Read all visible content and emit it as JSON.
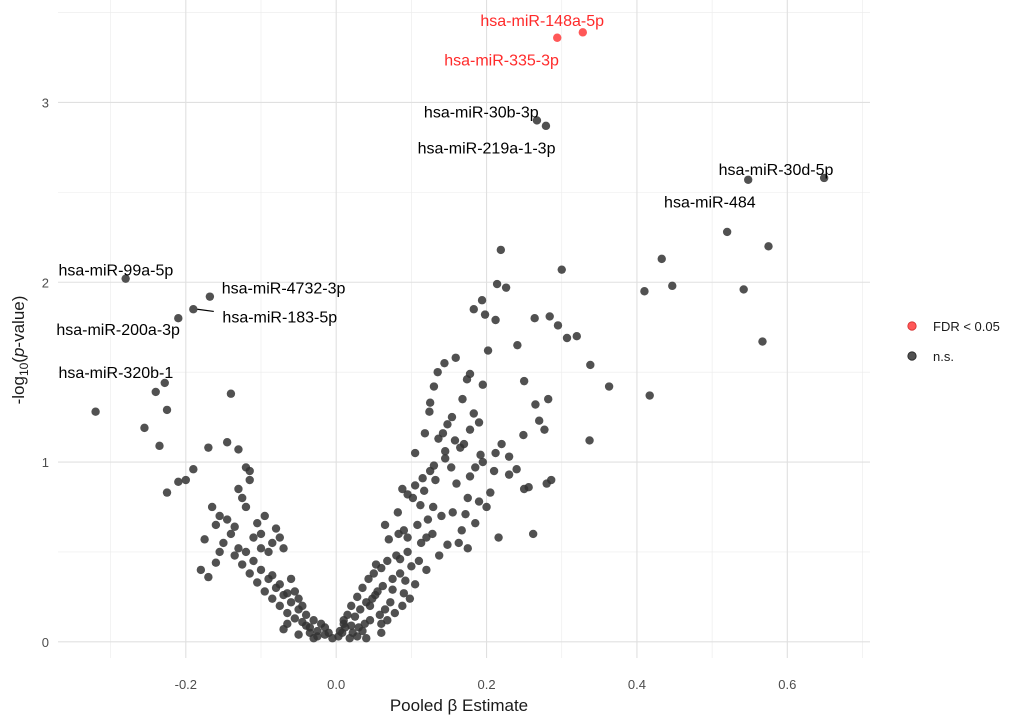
{
  "chart_data": {
    "type": "scatter",
    "xlabel": "Pooled β Estimate",
    "ylabel_pre": "-log",
    "ylabel_sub": "10",
    "ylabel_open": "(",
    "ylabel_italic": "p",
    "ylabel_post": "-value)",
    "xlim": [
      -0.37,
      0.71
    ],
    "ylim": [
      -0.09,
      3.57
    ],
    "x_ticks": [
      -0.2,
      0.0,
      0.2,
      0.4,
      0.6
    ],
    "x_tick_labels": [
      "-0.2",
      "0.0",
      "0.2",
      "0.4",
      "0.6"
    ],
    "y_ticks": [
      0,
      1,
      2,
      3
    ],
    "y_tick_labels": [
      "0",
      "1",
      "2",
      "3"
    ],
    "grid": true,
    "legend_position": "right",
    "legend": [
      {
        "label": "FDR < 0.05",
        "color": "#ff3b3b"
      },
      {
        "label": "n.s.",
        "color": "#333333"
      }
    ],
    "series": [
      {
        "name": "FDR < 0.05",
        "color": "#ff3b3b",
        "points": [
          [
            0.294,
            3.36
          ],
          [
            0.328,
            3.39
          ]
        ]
      },
      {
        "name": "n.s.",
        "color": "#333333",
        "points": [
          [
            0.267,
            2.9
          ],
          [
            0.279,
            2.87
          ],
          [
            0.649,
            2.58
          ],
          [
            0.548,
            2.57
          ],
          [
            0.52,
            2.28
          ],
          [
            0.575,
            2.2
          ],
          [
            0.219,
            2.18
          ],
          [
            0.433,
            2.13
          ],
          [
            0.3,
            2.07
          ],
          [
            0.447,
            1.98
          ],
          [
            0.41,
            1.95
          ],
          [
            0.542,
            1.96
          ],
          [
            0.214,
            1.99
          ],
          [
            0.226,
            1.97
          ],
          [
            0.194,
            1.9
          ],
          [
            0.567,
            1.67
          ],
          [
            0.183,
            1.85
          ],
          [
            0.198,
            1.82
          ],
          [
            0.212,
            1.79
          ],
          [
            0.284,
            1.81
          ],
          [
            0.264,
            1.8
          ],
          [
            0.295,
            1.76
          ],
          [
            0.307,
            1.69
          ],
          [
            0.32,
            1.7
          ],
          [
            0.202,
            1.62
          ],
          [
            0.159,
            1.58
          ],
          [
            0.144,
            1.55
          ],
          [
            0.135,
            1.5
          ],
          [
            0.241,
            1.65
          ],
          [
            0.178,
            1.49
          ],
          [
            0.174,
            1.46
          ],
          [
            0.195,
            1.43
          ],
          [
            0.338,
            1.54
          ],
          [
            0.363,
            1.42
          ],
          [
            0.417,
            1.37
          ],
          [
            0.25,
            1.45
          ],
          [
            0.168,
            1.35
          ],
          [
            0.13,
            1.42
          ],
          [
            0.125,
            1.33
          ],
          [
            0.265,
            1.32
          ],
          [
            0.154,
            1.25
          ],
          [
            0.183,
            1.27
          ],
          [
            0.282,
            1.35
          ],
          [
            0.124,
            1.28
          ],
          [
            0.27,
            1.23
          ],
          [
            0.249,
            1.15
          ],
          [
            0.277,
            1.18
          ],
          [
            0.337,
            1.12
          ],
          [
            0.148,
            1.21
          ],
          [
            0.118,
            1.16
          ],
          [
            0.136,
            1.13
          ],
          [
            0.165,
            1.08
          ],
          [
            0.17,
            1.1
          ],
          [
            0.105,
            1.05
          ],
          [
            0.195,
            1.0
          ],
          [
            0.185,
            0.97
          ],
          [
            0.145,
            1.02
          ],
          [
            0.13,
            0.98
          ],
          [
            0.125,
            0.95
          ],
          [
            0.21,
            0.95
          ],
          [
            0.23,
            0.93
          ],
          [
            0.25,
            0.85
          ],
          [
            0.28,
            0.88
          ],
          [
            0.256,
            0.86
          ],
          [
            0.286,
            0.9
          ],
          [
            0.115,
            0.91
          ],
          [
            0.105,
            0.87
          ],
          [
            0.095,
            0.82
          ],
          [
            0.175,
            0.8
          ],
          [
            0.19,
            0.78
          ],
          [
            0.2,
            0.75
          ],
          [
            0.155,
            0.72
          ],
          [
            0.14,
            0.7
          ],
          [
            0.122,
            0.68
          ],
          [
            0.108,
            0.65
          ],
          [
            0.09,
            0.62
          ],
          [
            0.083,
            0.6
          ],
          [
            0.07,
            0.57
          ],
          [
            0.128,
            0.6
          ],
          [
            0.148,
            0.54
          ],
          [
            0.163,
            0.55
          ],
          [
            0.175,
            0.52
          ],
          [
            0.216,
            0.58
          ],
          [
            0.262,
            0.6
          ],
          [
            0.095,
            0.5
          ],
          [
            0.08,
            0.48
          ],
          [
            0.068,
            0.45
          ],
          [
            0.06,
            0.41
          ],
          [
            0.05,
            0.38
          ],
          [
            0.043,
            0.35
          ],
          [
            0.035,
            0.3
          ],
          [
            0.028,
            0.25
          ],
          [
            0.02,
            0.2
          ],
          [
            0.015,
            0.15
          ],
          [
            0.01,
            0.1
          ],
          [
            0.005,
            0.06
          ],
          [
            0.003,
            0.03
          ],
          [
            0.008,
            0.05
          ],
          [
            0.012,
            0.08
          ],
          [
            0.025,
            0.14
          ],
          [
            0.032,
            0.18
          ],
          [
            0.04,
            0.22
          ],
          [
            0.048,
            0.24
          ],
          [
            0.055,
            0.28
          ],
          [
            0.062,
            0.31
          ],
          [
            0.075,
            0.35
          ],
          [
            0.085,
            0.38
          ],
          [
            0.1,
            0.42
          ],
          [
            0.11,
            0.45
          ],
          [
            0.12,
            0.4
          ],
          [
            0.105,
            0.32
          ],
          [
            0.09,
            0.27
          ],
          [
            0.072,
            0.22
          ],
          [
            0.065,
            0.18
          ],
          [
            0.058,
            0.15
          ],
          [
            0.045,
            0.12
          ],
          [
            0.038,
            0.1
          ],
          [
            0.03,
            0.08
          ],
          [
            0.022,
            0.05
          ],
          [
            0.028,
            0.03
          ],
          [
            0.018,
            0.02
          ],
          [
            -0.005,
            0.02
          ],
          [
            -0.01,
            0.05
          ],
          [
            -0.015,
            0.08
          ],
          [
            -0.02,
            0.1
          ],
          [
            -0.025,
            0.06
          ],
          [
            -0.03,
            0.12
          ],
          [
            -0.035,
            0.08
          ],
          [
            -0.04,
            0.15
          ],
          [
            -0.045,
            0.11
          ],
          [
            -0.05,
            0.18
          ],
          [
            -0.055,
            0.13
          ],
          [
            -0.06,
            0.22
          ],
          [
            -0.065,
            0.16
          ],
          [
            -0.07,
            0.26
          ],
          [
            -0.075,
            0.2
          ],
          [
            -0.08,
            0.3
          ],
          [
            -0.085,
            0.24
          ],
          [
            -0.09,
            0.35
          ],
          [
            -0.095,
            0.28
          ],
          [
            -0.1,
            0.4
          ],
          [
            -0.105,
            0.33
          ],
          [
            -0.11,
            0.45
          ],
          [
            -0.115,
            0.38
          ],
          [
            -0.12,
            0.5
          ],
          [
            -0.125,
            0.43
          ],
          [
            -0.13,
            0.52
          ],
          [
            -0.135,
            0.48
          ],
          [
            -0.09,
            0.5
          ],
          [
            -0.085,
            0.55
          ],
          [
            -0.1,
            0.6
          ],
          [
            -0.105,
            0.66
          ],
          [
            -0.095,
            0.7
          ],
          [
            -0.08,
            0.63
          ],
          [
            -0.075,
            0.58
          ],
          [
            -0.07,
            0.52
          ],
          [
            -0.12,
            0.75
          ],
          [
            -0.125,
            0.8
          ],
          [
            -0.13,
            0.85
          ],
          [
            -0.115,
            0.9
          ],
          [
            -0.14,
            0.6
          ],
          [
            -0.15,
            0.55
          ],
          [
            -0.155,
            0.7
          ],
          [
            -0.16,
            0.65
          ],
          [
            -0.165,
            0.75
          ],
          [
            -0.175,
            0.57
          ],
          [
            -0.18,
            0.4
          ],
          [
            -0.17,
            0.36
          ],
          [
            -0.2,
            0.9
          ],
          [
            -0.21,
            0.89
          ],
          [
            -0.225,
            0.83
          ],
          [
            -0.19,
            0.96
          ],
          [
            -0.17,
            1.08
          ],
          [
            -0.145,
            1.11
          ],
          [
            -0.13,
            1.07
          ],
          [
            -0.12,
            0.97
          ],
          [
            -0.115,
            0.95
          ],
          [
            -0.235,
            1.09
          ],
          [
            -0.255,
            1.19
          ],
          [
            -0.225,
            1.29
          ],
          [
            -0.14,
            1.38
          ],
          [
            -0.228,
            1.44
          ],
          [
            -0.24,
            1.39
          ],
          [
            -0.32,
            1.28
          ],
          [
            -0.21,
            1.8
          ],
          [
            -0.19,
            1.85
          ],
          [
            -0.168,
            1.92
          ],
          [
            -0.28,
            2.02
          ],
          [
            -0.06,
            0.35
          ],
          [
            -0.055,
            0.28
          ],
          [
            -0.05,
            0.24
          ],
          [
            -0.045,
            0.2
          ],
          [
            -0.04,
            0.09
          ],
          [
            -0.035,
            0.05
          ],
          [
            -0.025,
            0.03
          ],
          [
            -0.015,
            0.04
          ],
          [
            0.06,
            0.1
          ],
          [
            0.068,
            0.12
          ],
          [
            0.078,
            0.16
          ],
          [
            0.088,
            0.2
          ],
          [
            0.098,
            0.24
          ],
          [
            0.04,
            0.02
          ],
          [
            0.06,
            0.05
          ],
          [
            0.082,
            0.72
          ],
          [
            0.065,
            0.65
          ],
          [
            0.112,
            0.76
          ],
          [
            0.102,
            0.8
          ],
          [
            0.088,
            0.85
          ],
          [
            0.132,
            0.9
          ],
          [
            0.16,
            0.88
          ],
          [
            0.178,
            0.92
          ],
          [
            0.192,
            1.04
          ],
          [
            0.158,
            1.12
          ],
          [
            0.142,
            1.16
          ],
          [
            0.212,
            1.05
          ],
          [
            0.23,
            1.03
          ],
          [
            0.22,
            1.1
          ],
          [
            0.113,
            0.55
          ],
          [
            0.137,
            0.48
          ],
          [
            0.095,
            0.58
          ],
          [
            0.085,
            0.46
          ],
          [
            0.053,
            0.43
          ],
          [
            -0.085,
            0.37
          ],
          [
            -0.075,
            0.32
          ],
          [
            -0.065,
            0.27
          ],
          [
            -0.11,
            0.58
          ],
          [
            -0.1,
            0.52
          ],
          [
            -0.135,
            0.64
          ],
          [
            -0.145,
            0.68
          ],
          [
            -0.155,
            0.5
          ],
          [
            -0.16,
            0.44
          ],
          [
            -0.065,
            0.1
          ],
          [
            -0.07,
            0.07
          ],
          [
            -0.05,
            0.04
          ],
          [
            -0.03,
            0.02
          ],
          [
            0.01,
            0.12
          ],
          [
            0.02,
            0.09
          ],
          [
            0.035,
            0.06
          ],
          [
            0.045,
            0.2
          ],
          [
            0.052,
            0.26
          ],
          [
            0.075,
            0.29
          ],
          [
            0.092,
            0.34
          ],
          [
            0.12,
            0.58
          ],
          [
            0.129,
            0.75
          ],
          [
            0.117,
            0.84
          ],
          [
            0.167,
            0.62
          ],
          [
            0.185,
            0.66
          ],
          [
            0.172,
            0.71
          ],
          [
            0.205,
            0.83
          ],
          [
            0.24,
            0.96
          ],
          [
            0.178,
            1.18
          ],
          [
            0.19,
            1.22
          ],
          [
            0.145,
            1.06
          ],
          [
            0.153,
            0.97
          ]
        ]
      }
    ],
    "annotations": [
      {
        "text": "hsa-miR-148a-5p",
        "color": "#ff2a2a",
        "x": 0.274,
        "y": 3.46,
        "anchor": "middle",
        "pt": [
          0.328,
          3.39
        ]
      },
      {
        "text": "hsa-miR-335-3p",
        "color": "#ff2a2a",
        "x": 0.22,
        "y": 3.24,
        "anchor": "middle",
        "pt": [
          0.294,
          3.36
        ]
      },
      {
        "text": "hsa-miR-30b-3p",
        "color": "#000000",
        "x": 0.193,
        "y": 2.95,
        "anchor": "middle",
        "pt": [
          0.267,
          2.9
        ]
      },
      {
        "text": "hsa-miR-219a-1-3p",
        "color": "#000000",
        "x": 0.2,
        "y": 2.75,
        "anchor": "middle",
        "pt": [
          0.279,
          2.87
        ]
      },
      {
        "text": "hsa-miR-30d-5p",
        "color": "#000000",
        "x": 0.585,
        "y": 2.63,
        "anchor": "middle",
        "pt": [
          0.649,
          2.58
        ]
      },
      {
        "text": "hsa-miR-484",
        "color": "#000000",
        "x": 0.497,
        "y": 2.45,
        "anchor": "middle",
        "pt": [
          0.548,
          2.57
        ]
      },
      {
        "text": "hsa-miR-99a-5p",
        "color": "#000000",
        "x": -0.293,
        "y": 2.07,
        "anchor": "middle",
        "pt": [
          -0.28,
          2.02
        ]
      },
      {
        "text": "hsa-miR-4732-3p",
        "color": "#000000",
        "x": -0.07,
        "y": 1.97,
        "anchor": "middle",
        "pt": [
          -0.168,
          1.92
        ]
      },
      {
        "text": "hsa-miR-183-5p",
        "color": "#000000",
        "x": -0.075,
        "y": 1.81,
        "anchor": "middle",
        "pt": [
          -0.19,
          1.85
        ],
        "line": true
      },
      {
        "text": "hsa-miR-200a-3p",
        "color": "#000000",
        "x": -0.29,
        "y": 1.74,
        "anchor": "middle",
        "pt": [
          -0.21,
          1.8
        ]
      },
      {
        "text": "hsa-miR-320b-1",
        "color": "#000000",
        "x": -0.293,
        "y": 1.5,
        "anchor": "middle",
        "pt": [
          -0.228,
          1.44
        ]
      }
    ]
  }
}
